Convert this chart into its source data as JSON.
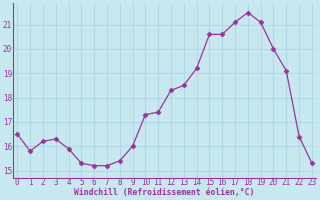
{
  "x": [
    0,
    1,
    2,
    3,
    4,
    5,
    6,
    7,
    8,
    9,
    10,
    11,
    12,
    13,
    14,
    15,
    16,
    17,
    18,
    19,
    20,
    21,
    22,
    23
  ],
  "y": [
    16.5,
    15.8,
    16.2,
    16.3,
    15.9,
    15.3,
    15.2,
    15.2,
    15.4,
    16.0,
    17.3,
    17.4,
    18.3,
    18.5,
    19.2,
    20.6,
    20.6,
    21.1,
    21.5,
    21.1,
    20.0,
    19.1,
    16.4,
    15.3
  ],
  "line_color": "#993399",
  "marker": "D",
  "marker_size": 2.5,
  "bg_color": "#c8e8f0",
  "grid_color": "#b0d8e8",
  "xlabel": "Windchill (Refroidissement éolien,°C)",
  "xlabel_color": "#993399",
  "tick_color": "#993399",
  "ylim": [
    14.7,
    21.9
  ],
  "yticks": [
    15,
    16,
    17,
    18,
    19,
    20,
    21
  ],
  "xticks": [
    0,
    1,
    2,
    3,
    4,
    5,
    6,
    7,
    8,
    9,
    10,
    11,
    12,
    13,
    14,
    15,
    16,
    17,
    18,
    19,
    20,
    21,
    22,
    23
  ],
  "xlim": [
    -0.3,
    23.3
  ]
}
